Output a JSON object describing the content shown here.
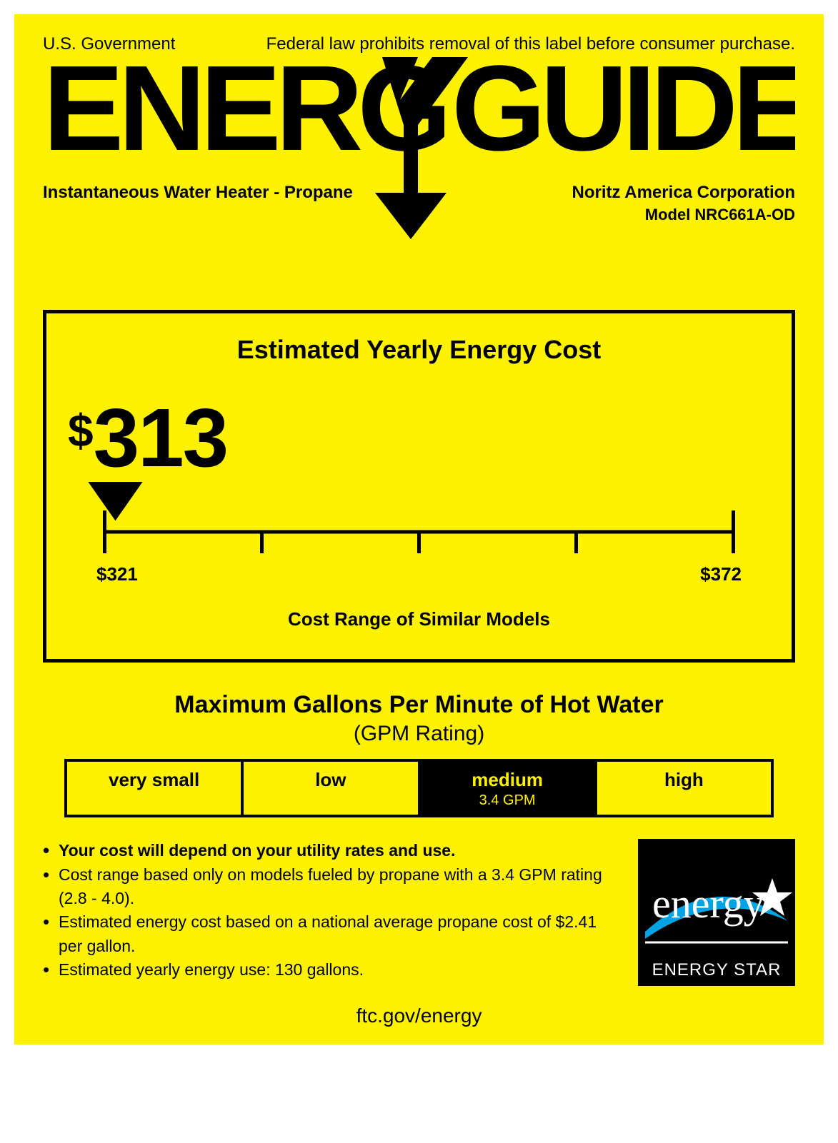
{
  "colors": {
    "background": "#fff200",
    "ink": "#000000",
    "estar_bg": "#000000",
    "estar_fg": "#ffffff"
  },
  "header": {
    "authority": "U.S. Government",
    "legal": "Federal law prohibits removal of this label before consumer purchase.",
    "product_type": "Instantaneous Water Heater - Propane",
    "manufacturer": "Noritz America Corporation",
    "model": "Model NRC661A-OD"
  },
  "cost": {
    "title": "Estimated Yearly Energy Cost",
    "currency": "$",
    "value": "313",
    "range_min": "$321",
    "range_max": "$372",
    "range_label": "Cost Range of Similar Models",
    "scale": {
      "pointer_percent": 4,
      "ticks": 5
    }
  },
  "gpm": {
    "title": "Maximum Gallons Per Minute of Hot Water",
    "subtitle": "(GPM Rating)",
    "cells": [
      {
        "label": "very small",
        "selected": false
      },
      {
        "label": "low",
        "selected": false
      },
      {
        "label": "medium",
        "selected": true,
        "value": "3.4 GPM"
      },
      {
        "label": "high",
        "selected": false
      }
    ]
  },
  "notes": [
    {
      "text": "Your cost will depend on your utility rates and use.",
      "bold": true
    },
    {
      "text": "Cost range based only on models fueled by propane with a 3.4 GPM rating (2.8 - 4.0).",
      "bold": false
    },
    {
      "text": "Estimated energy cost based on a national average propane cost of $2.41 per gallon.",
      "bold": false
    },
    {
      "text": "Estimated yearly energy use: 130 gallons.",
      "bold": false
    }
  ],
  "energy_star": {
    "label": "ENERGY STAR"
  },
  "url": "ftc.gov/energy"
}
